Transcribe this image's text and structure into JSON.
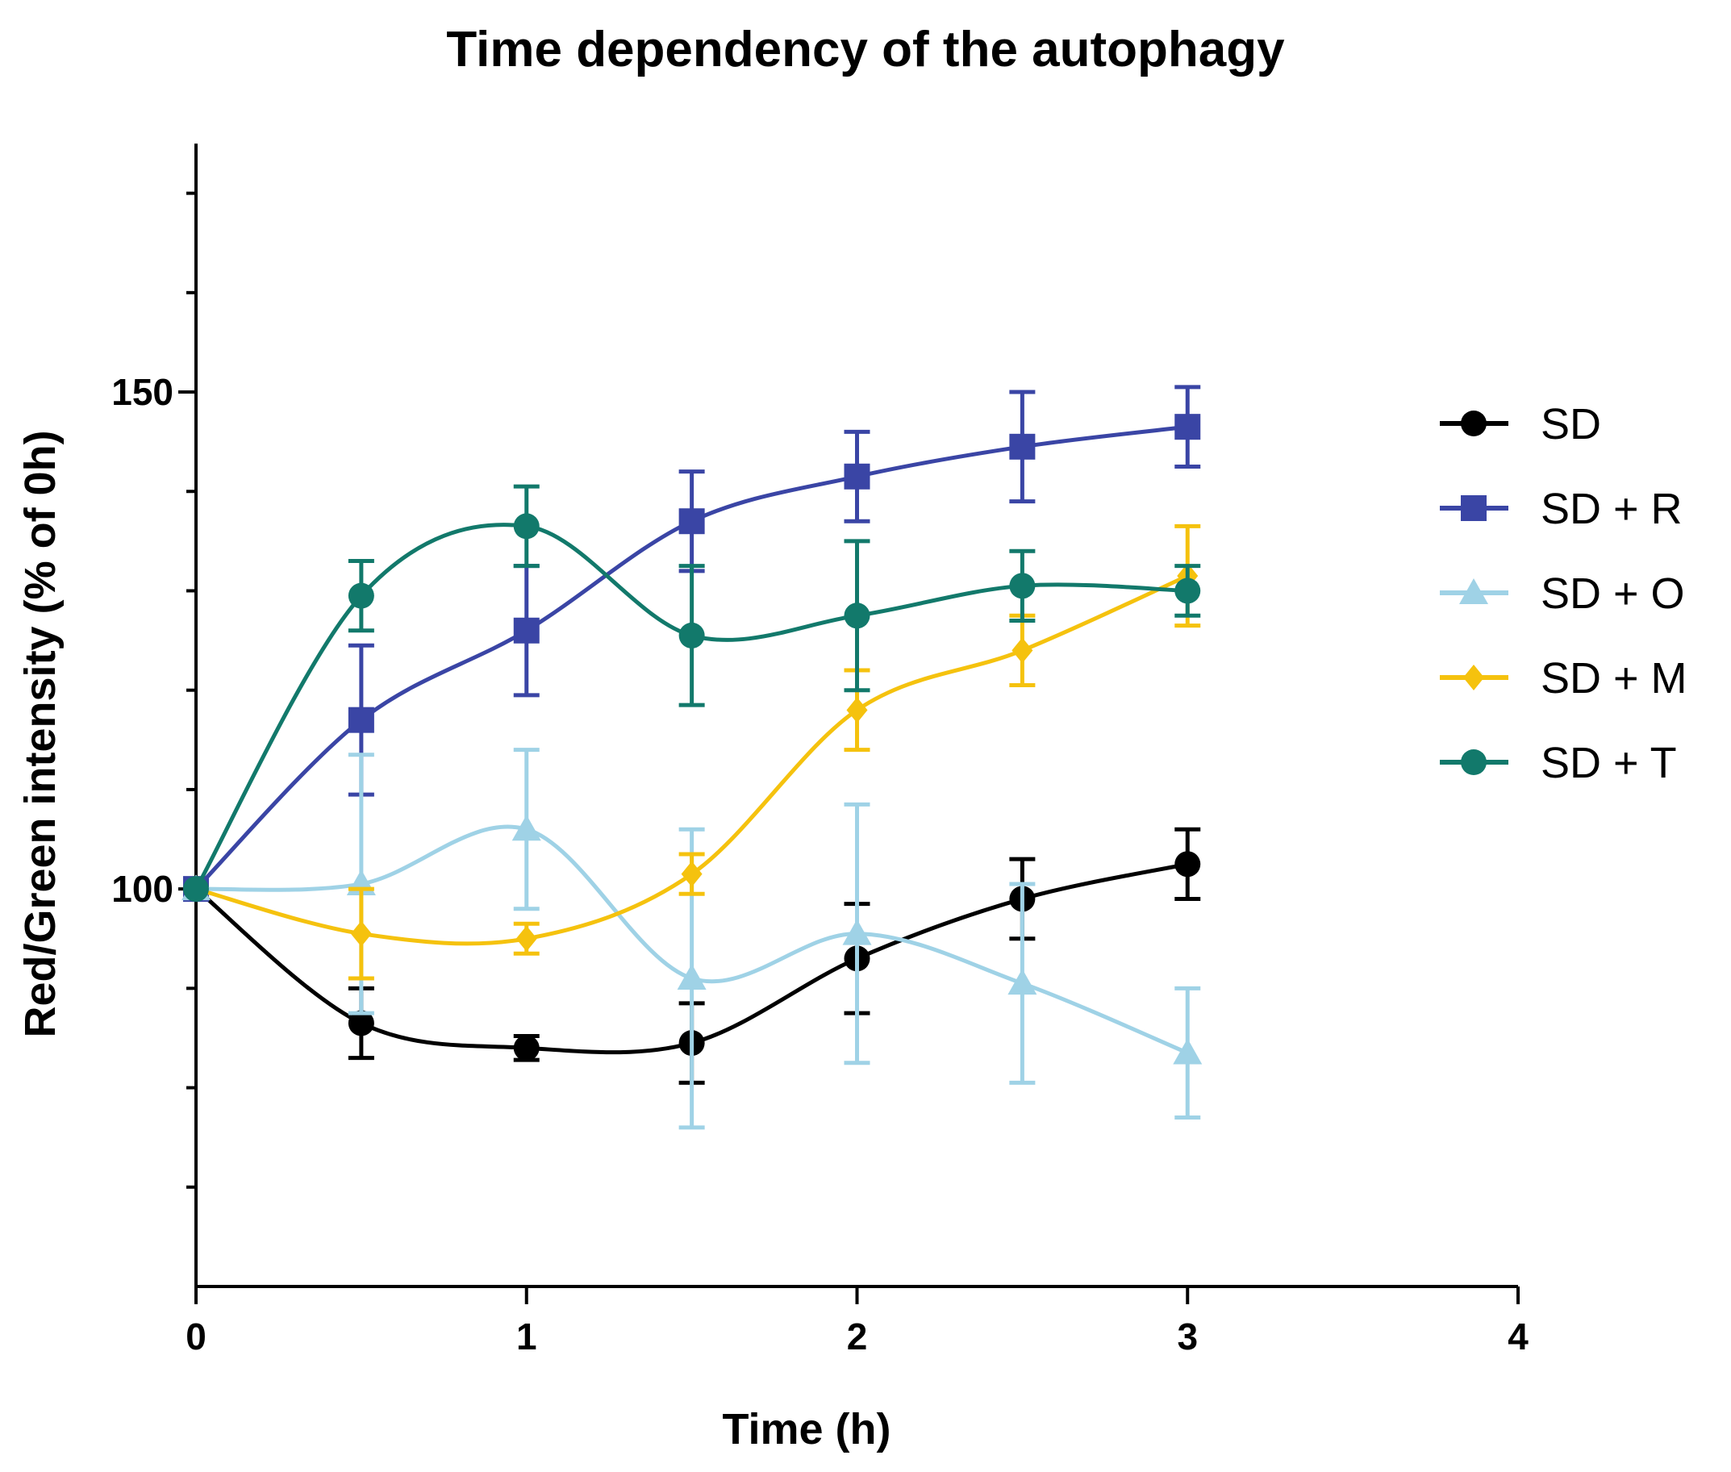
{
  "chart_data": {
    "type": "line",
    "title": "Time dependency of the autophagy",
    "xlabel": "Time (h)",
    "ylabel": "Red/Green intensity (% of 0h)",
    "xlim": [
      0,
      4
    ],
    "ylim": [
      60,
      175
    ],
    "x_ticks": [
      0,
      1,
      2,
      3,
      4
    ],
    "x_tick_labels": [
      "0",
      "1",
      "2",
      "3",
      "4"
    ],
    "y_major_ticks": [
      100,
      150
    ],
    "y_tick_labels": [
      "100",
      "150"
    ],
    "y_minor_ticks": [
      70,
      80,
      90,
      110,
      120,
      130,
      140,
      160,
      170
    ],
    "grid": false,
    "legend_position": "right",
    "x": [
      0,
      0.5,
      1,
      1.5,
      2,
      2.5,
      3
    ],
    "series": [
      {
        "name": "SD",
        "color": "#000000",
        "marker": "circle",
        "values": [
          100,
          86.5,
          84.0,
          84.5,
          93.0,
          99.0,
          102.5
        ],
        "errors": [
          0,
          3.5,
          1.2,
          4.0,
          5.5,
          4.0,
          3.5
        ]
      },
      {
        "name": "SD + R",
        "color": "#3A45A5",
        "marker": "square",
        "values": [
          100,
          117.0,
          126.0,
          137.0,
          141.5,
          144.5,
          146.5
        ],
        "errors": [
          0,
          7.5,
          6.5,
          5.0,
          4.5,
          5.5,
          4.0
        ]
      },
      {
        "name": "SD + O",
        "color": "#9FD2E6",
        "marker": "triangle",
        "values": [
          100,
          100.5,
          106.0,
          91.0,
          95.5,
          90.5,
          83.5
        ],
        "errors": [
          0,
          13.0,
          8.0,
          15.0,
          13.0,
          10.0,
          6.5
        ]
      },
      {
        "name": "SD + M",
        "color": "#F5C20E",
        "marker": "diamond",
        "values": [
          100,
          95.5,
          95.0,
          101.5,
          118.0,
          124.0,
          131.5
        ],
        "errors": [
          0,
          4.5,
          1.5,
          2.0,
          4.0,
          3.5,
          5.0
        ]
      },
      {
        "name": "SD + T",
        "color": "#12796B",
        "marker": "circle",
        "values": [
          100,
          129.5,
          136.5,
          125.5,
          127.5,
          130.5,
          130.0
        ],
        "errors": [
          0,
          3.5,
          4.0,
          7.0,
          7.5,
          3.5,
          2.5
        ]
      }
    ]
  }
}
